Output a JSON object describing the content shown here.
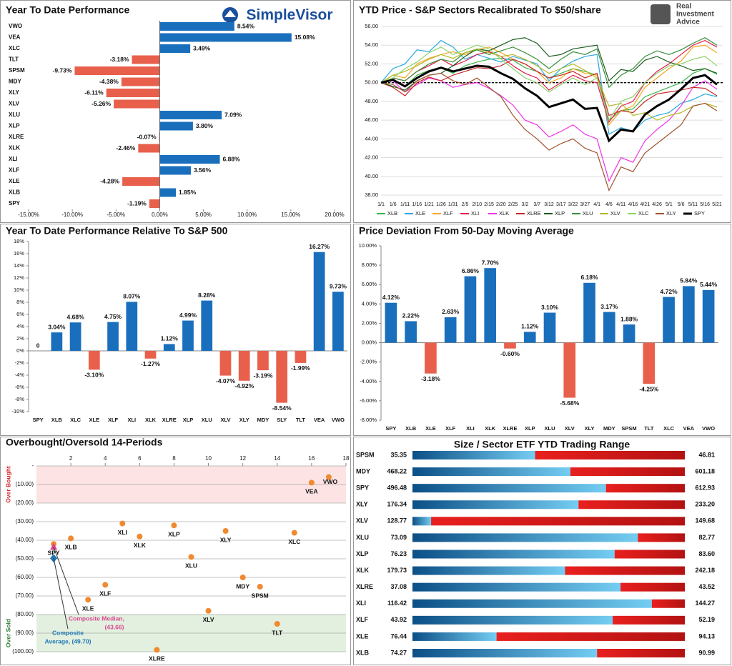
{
  "chart_data": [
    {
      "type": "barh",
      "title": "Year To Date Performance",
      "logo": "SimpleVisor",
      "categories": [
        "VWO",
        "VEA",
        "XLC",
        "TLT",
        "SPSM",
        "MDY",
        "XLY",
        "XLV",
        "XLU",
        "XLP",
        "XLRE",
        "XLK",
        "XLI",
        "XLF",
        "XLE",
        "XLB",
        "SPY"
      ],
      "values": [
        8.54,
        15.08,
        3.49,
        -3.18,
        -9.73,
        -4.38,
        -6.11,
        -5.26,
        7.09,
        3.8,
        -0.07,
        -2.46,
        6.88,
        3.56,
        -4.28,
        1.85,
        -1.19
      ],
      "value_labels": [
        "8.54%",
        "15.08%",
        "3.49%",
        "-3.18%",
        "-9.73%",
        "-4.38%",
        "-6.11%",
        "-5.26%",
        "7.09%",
        "3.80%",
        "-0.07%",
        "-2.46%",
        "6.88%",
        "3.56%",
        "-4.28%",
        "1.85%",
        "-1.19%"
      ],
      "pos_color": "#1a6fbd",
      "neg_color": "#e8604c",
      "xlim": [
        -15,
        20
      ],
      "xticks": [
        {
          "value": -15,
          "label": "-15.00%"
        },
        {
          "value": -10,
          "label": "-10.00%"
        },
        {
          "value": -5,
          "label": "-5.00%"
        },
        {
          "value": 0,
          "label": "0.00%"
        },
        {
          "value": 5,
          "label": "5.00%"
        },
        {
          "value": 10,
          "label": "10.00%"
        },
        {
          "value": 15,
          "label": "15.00%"
        },
        {
          "value": 20,
          "label": "20.00%"
        }
      ],
      "grid": false
    },
    {
      "type": "line",
      "title": "YTD Price - S&P Sectors Recalibrated To $50/share",
      "logo": [
        "Real",
        "Investment",
        "Advice"
      ],
      "categories": [
        "1/1",
        "1/6",
        "1/11",
        "1/16",
        "1/21",
        "1/26",
        "1/31",
        "2/5",
        "2/10",
        "2/15",
        "2/20",
        "2/25",
        "3/2",
        "3/7",
        "3/12",
        "3/17",
        "3/22",
        "3/27",
        "4/1",
        "4/6",
        "4/11",
        "4/16",
        "4/21",
        "4/26",
        "5/1",
        "5/6",
        "5/11",
        "5/16",
        "5/21"
      ],
      "series": [
        {
          "name": "XLB",
          "color": "#3cb44b",
          "values": [
            50,
            50.2,
            49.6,
            50.8,
            51.3,
            51.6,
            51,
            51.8,
            52.2,
            52.5,
            52.6,
            52.4,
            51.6,
            51.2,
            50.5,
            51,
            51.5,
            51.2,
            50.8,
            46,
            47,
            47.2,
            48.5,
            49,
            49.5,
            50,
            51,
            51.5,
            50.9
          ]
        },
        {
          "name": "XLE",
          "color": "#29a8e0",
          "values": [
            50,
            51.5,
            52,
            53.5,
            53.3,
            54.5,
            53.8,
            52.5,
            53,
            52.6,
            52.2,
            52.8,
            52.4,
            52,
            50.2,
            51.5,
            52.3,
            52.8,
            53,
            44.5,
            45.2,
            44.8,
            46,
            46.5,
            46.8,
            47.8,
            48.2,
            48.8,
            48.5
          ]
        },
        {
          "name": "XLF",
          "color": "#f5a623",
          "values": [
            50,
            50.8,
            50.5,
            52,
            52.6,
            53,
            53.3,
            53,
            53.5,
            53.8,
            53.2,
            52.5,
            52,
            51.2,
            50,
            50.5,
            51.5,
            51,
            50.8,
            45.5,
            47,
            47.5,
            49.5,
            50.5,
            51.5,
            52.3,
            53.8,
            54,
            53.2
          ]
        },
        {
          "name": "XLI",
          "color": "#e6194b",
          "values": [
            50,
            50.5,
            50.2,
            51.2,
            51.8,
            52.5,
            51.8,
            52.3,
            53,
            53.3,
            52.8,
            51.8,
            51,
            50.5,
            49.2,
            50,
            50.8,
            50.2,
            50,
            45.8,
            47.5,
            48,
            50,
            51.2,
            52,
            53,
            54,
            54.5,
            53.8
          ]
        },
        {
          "name": "XLK",
          "color": "#f032e6",
          "values": [
            50,
            50.2,
            49,
            49.8,
            50.5,
            50.2,
            49.5,
            49.8,
            50,
            49.4,
            48.6,
            47.6,
            46,
            45.5,
            44.2,
            44.8,
            45.5,
            44.5,
            44,
            39.5,
            42,
            41.5,
            43.8,
            45,
            46,
            47.5,
            49.5,
            50.2,
            49.3
          ]
        },
        {
          "name": "XLRE",
          "color": "#c62828",
          "values": [
            50,
            49.5,
            48.6,
            50,
            50.6,
            50.2,
            50.8,
            51.2,
            51.6,
            51.5,
            51.8,
            52.5,
            52,
            51.2,
            50.5,
            50.8,
            51.2,
            50.5,
            51,
            46.5,
            47,
            46.8,
            48,
            48.8,
            49,
            49.2,
            49.5,
            49.4,
            48.6
          ]
        },
        {
          "name": "XLP",
          "color": "#1b5e20",
          "values": [
            50,
            49.6,
            49.2,
            50.2,
            50.8,
            51,
            51.8,
            52.8,
            53.6,
            53.4,
            54,
            54.6,
            54.8,
            54.2,
            52.8,
            53,
            53.6,
            53.8,
            54,
            50.2,
            51.4,
            51.2,
            52.4,
            52.8,
            52.2,
            51.8,
            51.3,
            51.5,
            51
          ]
        },
        {
          "name": "XLU",
          "color": "#388e3c",
          "values": [
            50,
            50.5,
            50.2,
            51.2,
            52,
            52.5,
            52.2,
            53.2,
            53.5,
            53,
            53.4,
            53.8,
            53.2,
            52.5,
            51.5,
            52.5,
            53.3,
            53,
            53.6,
            49.5,
            50.8,
            51.5,
            52.8,
            53.4,
            53,
            53.5,
            54.2,
            54.8,
            54
          ]
        },
        {
          "name": "XLV",
          "color": "#b5b826",
          "values": [
            50,
            50.8,
            51.2,
            51.8,
            52.5,
            53,
            52.6,
            53.2,
            53.6,
            53.2,
            52.8,
            53,
            52.5,
            51.8,
            51,
            51.5,
            52,
            51.3,
            50.5,
            47.5,
            47.8,
            46.5,
            46.8,
            46,
            46.5,
            46.8,
            47.5,
            47.8,
            47.4
          ]
        },
        {
          "name": "XLC",
          "color": "#8bd36a",
          "values": [
            50,
            50.5,
            51.5,
            52.2,
            53.2,
            53.8,
            53,
            53.5,
            54,
            53.6,
            52.5,
            51.5,
            50.5,
            50,
            49,
            49.8,
            50.5,
            49.8,
            50.5,
            46,
            48,
            48.5,
            50,
            51,
            51.8,
            52,
            52.5,
            52.8,
            51.8
          ]
        },
        {
          "name": "XLY",
          "color": "#a0522d",
          "values": [
            50,
            49.8,
            49,
            50.2,
            50.8,
            51,
            50.2,
            49.8,
            50.5,
            49.5,
            48.5,
            46.5,
            45,
            44,
            42.8,
            43.5,
            44,
            43,
            42.5,
            38.5,
            41,
            40.5,
            42.5,
            43.5,
            44.5,
            45.5,
            47.5,
            47.8,
            47
          ]
        },
        {
          "name": "SPY",
          "color": "#000000",
          "values": [
            50,
            50.3,
            49.6,
            50.5,
            51.2,
            51.6,
            51.2,
            51.5,
            51.8,
            51.7,
            51,
            50.4,
            49.4,
            48.6,
            47.4,
            47.8,
            48.2,
            47.2,
            47.3,
            43.8,
            45,
            44.8,
            46.6,
            47.5,
            48.2,
            49.3,
            50.5,
            50.8,
            49.8
          ]
        }
      ],
      "hline": 50,
      "ylim": [
        38,
        56
      ],
      "yticks": [
        {
          "value": 38,
          "label": "38.00"
        },
        {
          "value": 40,
          "label": "40.00"
        },
        {
          "value": 42,
          "label": "42.00"
        },
        {
          "value": 44,
          "label": "44.00"
        },
        {
          "value": 46,
          "label": "46.00"
        },
        {
          "value": 48,
          "label": "48.00"
        },
        {
          "value": 50,
          "label": "50.00"
        },
        {
          "value": 52,
          "label": "52.00"
        },
        {
          "value": 54,
          "label": "54.00"
        },
        {
          "value": 56,
          "label": "56.00"
        }
      ],
      "grid": true
    },
    {
      "type": "bar",
      "title": "Year To Date Performance Relative To S&P 500",
      "categories": [
        "SPY",
        "XLB",
        "XLC",
        "XLE",
        "XLF",
        "XLI",
        "XLK",
        "XLRE",
        "XLP",
        "XLU",
        "XLV",
        "XLY",
        "MDY",
        "SLY",
        "TLT",
        "VEA",
        "VWO"
      ],
      "values": [
        0,
        3.04,
        4.68,
        -3.1,
        4.75,
        8.07,
        -1.27,
        1.12,
        4.99,
        8.28,
        -4.07,
        -4.92,
        -3.19,
        -8.54,
        -1.99,
        16.27,
        9.73
      ],
      "value_labels": [
        "0",
        "3.04%",
        "4.68%",
        "-3.10%",
        "4.75%",
        "8.07%",
        "-1.27%",
        "1.12%",
        "4.99%",
        "8.28%",
        "-4.07%",
        "-4.92%",
        "-3.19%",
        "-8.54%",
        "-1.99%",
        "16.27%",
        "9.73%"
      ],
      "pos_color": "#1a6fbd",
      "neg_color": "#e8604c",
      "ylim": [
        -10,
        18
      ],
      "yticks": [
        {
          "value": -10,
          "label": "-10%"
        },
        {
          "value": -8,
          "label": "-8%"
        },
        {
          "value": -6,
          "label": "-6%"
        },
        {
          "value": -4,
          "label": "-4%"
        },
        {
          "value": -2,
          "label": "-2%"
        },
        {
          "value": 0,
          "label": "0%"
        },
        {
          "value": 2,
          "label": "2%"
        },
        {
          "value": 4,
          "label": "4%"
        },
        {
          "value": 6,
          "label": "6%"
        },
        {
          "value": 8,
          "label": "8%"
        },
        {
          "value": 10,
          "label": "10%"
        },
        {
          "value": 12,
          "label": "12%"
        },
        {
          "value": 14,
          "label": "14%"
        },
        {
          "value": 16,
          "label": "16%"
        },
        {
          "value": 18,
          "label": "18%"
        }
      ],
      "grid": false
    },
    {
      "type": "bar",
      "title": "Price Deviation From 50-Day Moving Average",
      "categories": [
        "SPY",
        "XLB",
        "XLE",
        "XLF",
        "XLI",
        "XLK",
        "XLRE",
        "XLP",
        "XLU",
        "XLV",
        "XLY",
        "MDY",
        "SPSM",
        "TLT",
        "XLC",
        "VEA",
        "VWO"
      ],
      "values": [
        4.12,
        2.22,
        -3.18,
        2.63,
        6.86,
        7.7,
        -0.6,
        1.12,
        3.1,
        -5.68,
        6.18,
        3.17,
        1.88,
        -4.25,
        4.72,
        5.84,
        5.44
      ],
      "value_labels": [
        "4.12%",
        "2.22%",
        "-3.18%",
        "2.63%",
        "6.86%",
        "7.70%",
        "-0.60%",
        "1.12%",
        "3.10%",
        "-5.68%",
        "6.18%",
        "3.17%",
        "1.88%",
        "-4.25%",
        "4.72%",
        "5.84%",
        "5.44%"
      ],
      "pos_color": "#1a6fbd",
      "neg_color": "#e8604c",
      "ylim": [
        -8,
        10
      ],
      "yticks": [
        {
          "value": -8,
          "label": "-8.00%"
        },
        {
          "value": -6,
          "label": "-6.00%"
        },
        {
          "value": -4,
          "label": "-4.00%"
        },
        {
          "value": -2,
          "label": "-2.00%"
        },
        {
          "value": 0,
          "label": "0.00%"
        },
        {
          "value": 2,
          "label": "2.00%"
        },
        {
          "value": 4,
          "label": "4.00%"
        },
        {
          "value": 6,
          "label": "6.00%"
        },
        {
          "value": 8,
          "label": "8.00%"
        },
        {
          "value": 10,
          "label": "10.00%"
        }
      ],
      "grid": false
    },
    {
      "type": "scatter",
      "title": "Overbought/Oversold 14-Periods",
      "categories": [
        "VWO",
        "VEA",
        "XLC",
        "XLY",
        "XLP",
        "XLI",
        "XLK",
        "SPY",
        "XLB",
        "XLU",
        "MDY",
        "SPSM",
        "XLF",
        "XLE",
        "XLV",
        "TLT",
        "XLRE"
      ],
      "x": [
        17,
        16,
        15,
        11,
        8,
        5,
        6,
        1,
        2,
        9,
        12,
        13,
        4,
        3,
        10,
        14,
        7
      ],
      "values": [
        -6,
        -9,
        -36,
        -35,
        -32,
        -31,
        -38,
        -42,
        -39,
        -49,
        -60,
        -65,
        -64,
        -72,
        -78,
        -85,
        -99
      ],
      "color": "#f08a30",
      "composites": [
        {
          "label_lines": [
            "Composite Median,",
            "(43.66)"
          ],
          "x": 1,
          "value": -43.66,
          "color": "#d9488f"
        },
        {
          "label_lines": [
            "Composite",
            "Average,  (49.70)"
          ],
          "x": 1,
          "value": -49.7,
          "color": "#1f77b4"
        }
      ],
      "zones": [
        {
          "name": "Over Bought",
          "range": [
            0,
            -20
          ],
          "color": "#fde3e3",
          "text_color": "#d62728"
        },
        {
          "name": "Over Sold",
          "range": [
            -80,
            -100
          ],
          "color": "#e3f0e0",
          "text_color": "#2e7d32"
        }
      ],
      "xlim": [
        0,
        18
      ],
      "xticks": [
        2,
        4,
        6,
        8,
        10,
        12,
        14,
        16,
        18
      ],
      "ylim": [
        -100,
        0
      ],
      "yticks": [
        {
          "value": 0,
          "label": "-"
        },
        {
          "value": -10,
          "label": "(10.00)"
        },
        {
          "value": -20,
          "label": "(20.00)"
        },
        {
          "value": -30,
          "label": "(30.00)"
        },
        {
          "value": -40,
          "label": "(40.00)"
        },
        {
          "value": -50,
          "label": "(50.00)"
        },
        {
          "value": -60,
          "label": "(60.00)"
        },
        {
          "value": -70,
          "label": "(70.00)"
        },
        {
          "value": -80,
          "label": "(80.00)"
        },
        {
          "value": -90,
          "label": "(90.00)"
        },
        {
          "value": -100,
          "label": "(100.00)"
        }
      ],
      "grid": true
    },
    {
      "type": "range",
      "title": "Size / Sector ETF YTD Trading Range",
      "categories": [
        "SPSM",
        "MDY",
        "SPY",
        "XLY",
        "XLV",
        "XLU",
        "XLP",
        "XLK",
        "XLRE",
        "XLI",
        "XLF",
        "XLE",
        "XLB"
      ],
      "low": [
        35.35,
        468.22,
        496.48,
        176.34,
        128.77,
        73.09,
        76.23,
        179.73,
        37.08,
        116.42,
        43.92,
        76.44,
        74.27
      ],
      "low_labels": [
        "35.35",
        "468.22",
        "496.48",
        "176.34",
        "128.77",
        "73.09",
        "76.23",
        "179.73",
        "37.08",
        "116.42",
        "43.92",
        "76.44",
        "74.27"
      ],
      "high": [
        46.81,
        601.18,
        612.93,
        233.2,
        149.68,
        82.77,
        83.6,
        242.18,
        43.52,
        144.27,
        52.19,
        94.13,
        90.99
      ],
      "high_labels": [
        "46.81",
        "601.18",
        "612.93",
        "233.20",
        "149.68",
        "82.77",
        "83.60",
        "242.18",
        "43.52",
        "144.27",
        "52.19",
        "94.13",
        "90.99"
      ],
      "current": [
        40.51,
        545.3,
        579.2,
        211.0,
        130.2,
        81.1,
        81.7,
        214.7,
        42.0,
        140.9,
        50.0,
        81.9,
        85.6
      ]
    }
  ]
}
